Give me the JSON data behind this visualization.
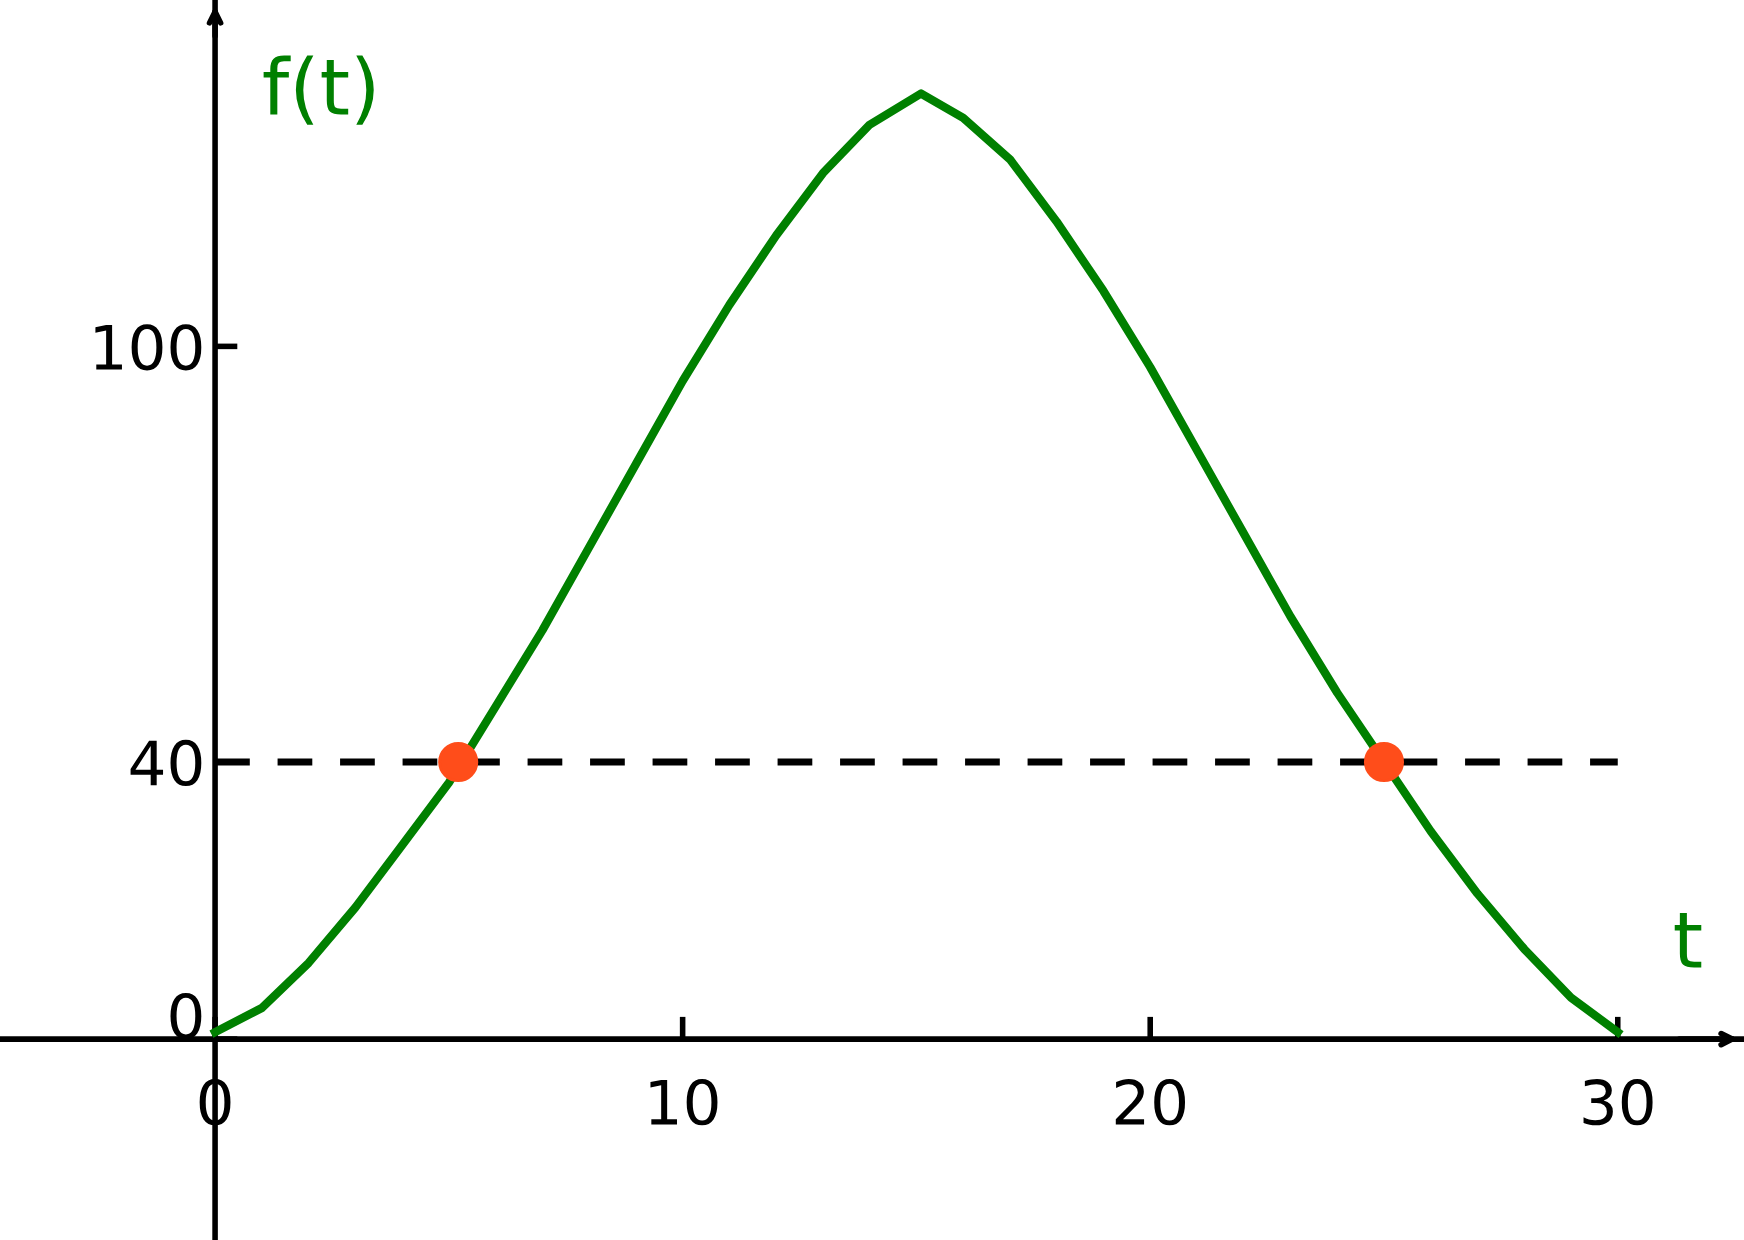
{
  "chart_data": {
    "type": "line",
    "xlabel": "t",
    "ylabel": "f(t)",
    "xlim": [
      -4.6,
      32.7
    ],
    "ylim": [
      -29,
      150
    ],
    "xticks": [
      0,
      10,
      20,
      30
    ],
    "yticks": [
      0,
      40,
      100
    ],
    "grid": false,
    "legend": false,
    "series": [
      {
        "type": "line",
        "color": "#008000",
        "x": [
          0,
          1,
          2,
          3,
          4,
          5,
          6,
          7,
          8,
          9,
          10,
          11,
          12,
          13,
          14,
          15.1,
          16,
          17,
          18,
          19,
          20,
          21,
          22,
          23,
          24,
          26,
          27,
          28,
          29,
          30
        ],
        "values": [
          1,
          4.5,
          11,
          19,
          28,
          37,
          48,
          59,
          71,
          83,
          95,
          106,
          116,
          125,
          132,
          136.5,
          133,
          127,
          118,
          108,
          97,
          85,
          73,
          61,
          50,
          30,
          21,
          13,
          6,
          1
        ]
      },
      {
        "type": "scatter",
        "color": "#ff4d1a",
        "x": [
          5.2,
          25
        ],
        "values": [
          40,
          40
        ]
      }
    ],
    "ref_lines": [
      {
        "axis": "y",
        "value": 40,
        "color": "#000000",
        "line_style": "dashed"
      }
    ]
  }
}
